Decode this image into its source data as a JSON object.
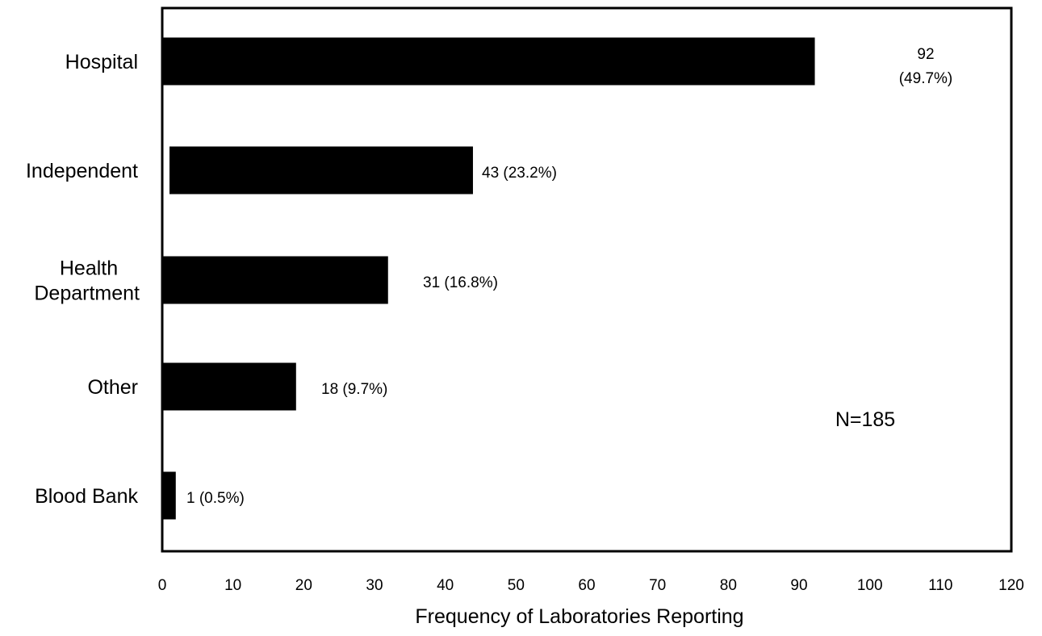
{
  "chart_data": {
    "type": "bar",
    "orientation": "horizontal",
    "categories": [
      {
        "lines": [
          "Hospital"
        ]
      },
      {
        "lines": [
          "Independent"
        ]
      },
      {
        "lines": [
          "Health",
          "Department"
        ]
      },
      {
        "lines": [
          "Other"
        ]
      },
      {
        "lines": [
          "Blood Bank"
        ]
      }
    ],
    "values": [
      92,
      43,
      31,
      18,
      1
    ],
    "data_labels": [
      [
        "92",
        "(49.7%)"
      ],
      [
        "43 (23.2%)"
      ],
      [
        "31 (16.8%)"
      ],
      [
        "18 (9.7%)"
      ],
      [
        "1 (0.5%)"
      ]
    ],
    "xlabel": "Frequency of Laboratories Reporting",
    "ylabel": "",
    "title": "",
    "xlim": [
      0,
      120
    ],
    "xticks": [
      "0",
      "10",
      "20",
      "30",
      "40",
      "50",
      "60",
      "70",
      "80",
      "90",
      "100",
      "110",
      "120"
    ],
    "annotation": "N=185",
    "grid": false,
    "bar_color": "#000000"
  }
}
